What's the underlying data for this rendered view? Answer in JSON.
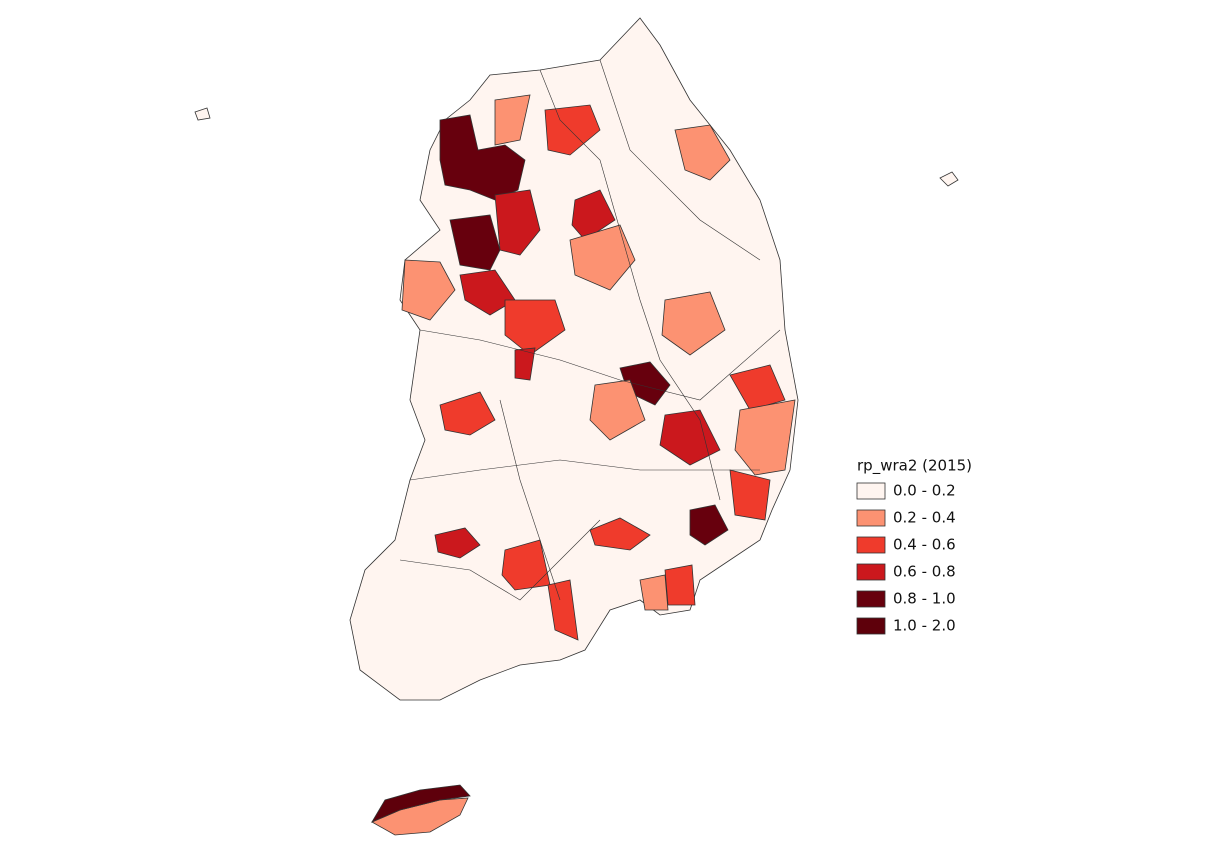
{
  "legend": {
    "title": "rp_wra2 (2015)",
    "items": [
      {
        "label": "0.0 - 0.2",
        "color": "#fff5f0"
      },
      {
        "label": "0.2 - 0.4",
        "color": "#fc9272"
      },
      {
        "label": "0.4 - 0.6",
        "color": "#ef3b2c"
      },
      {
        "label": "0.6 - 0.8",
        "color": "#cb181d"
      },
      {
        "label": "0.8 - 1.0",
        "color": "#67000d"
      },
      {
        "label": "1.0 - 2.0",
        "color": "#5e000b"
      }
    ]
  }
}
